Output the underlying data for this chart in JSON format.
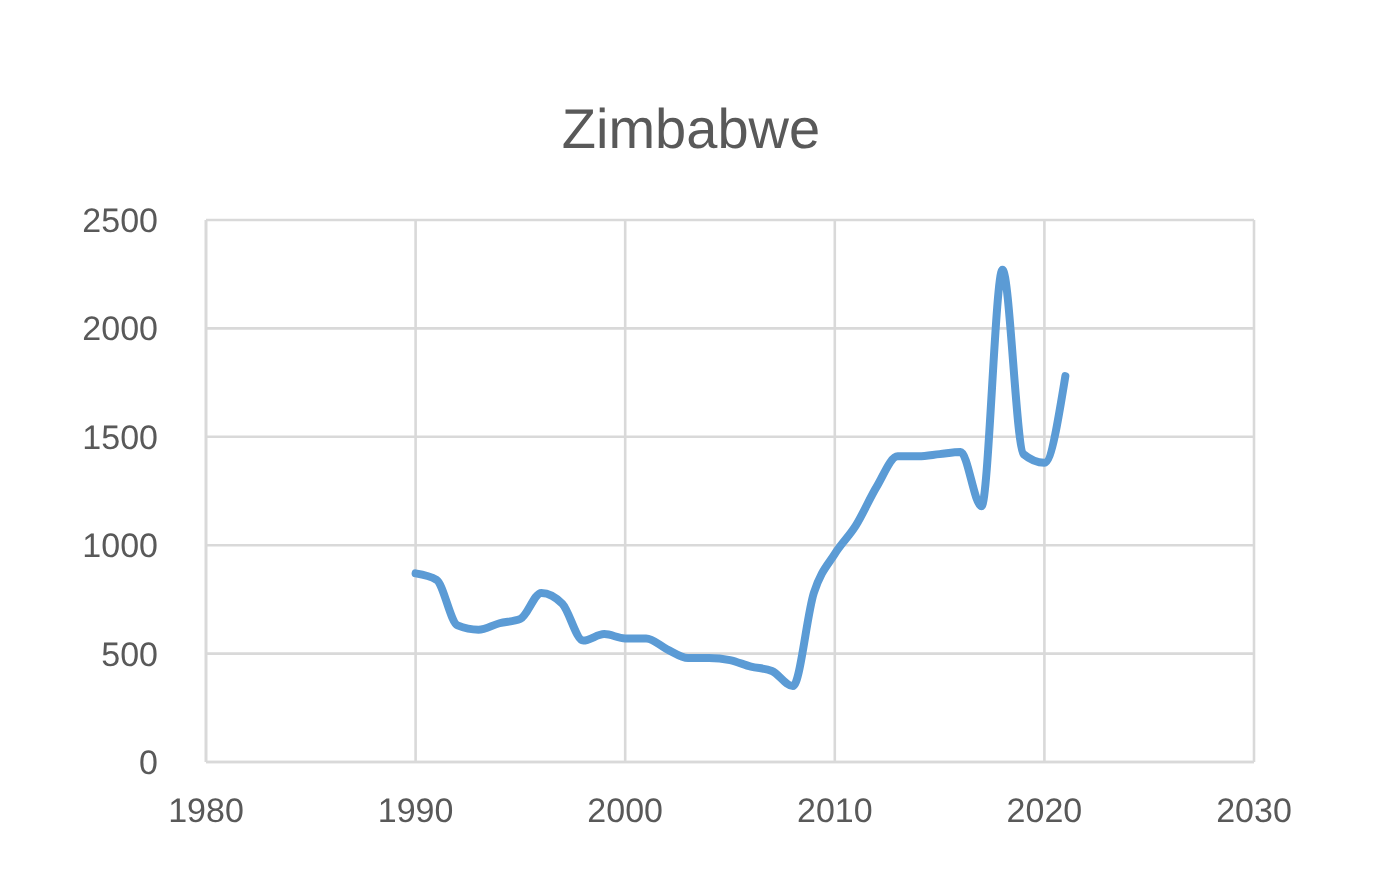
{
  "chart_data": {
    "type": "line",
    "title": "Zimbabwe",
    "x": [
      1990,
      1991,
      1992,
      1993,
      1994,
      1995,
      1996,
      1997,
      1998,
      1999,
      2000,
      2001,
      2002,
      2003,
      2004,
      2005,
      2006,
      2007,
      2008,
      2009,
      2010,
      2011,
      2012,
      2013,
      2014,
      2015,
      2016,
      2017,
      2018,
      2019,
      2020,
      2021
    ],
    "series": [
      {
        "color": "#5b9bd5",
        "values": [
          870,
          840,
          630,
          610,
          640,
          660,
          780,
          730,
          560,
          590,
          570,
          570,
          520,
          480,
          480,
          470,
          440,
          420,
          350,
          780,
          960,
          1090,
          1270,
          1410,
          1410,
          1420,
          1430,
          1180,
          2270,
          1420,
          1380,
          1780
        ]
      }
    ],
    "xlim": [
      1980,
      2030
    ],
    "xticks": [
      1980,
      1990,
      2000,
      2010,
      2020,
      2030
    ],
    "ylim": [
      0,
      2500
    ],
    "yticks": [
      0,
      500,
      1000,
      1500,
      2000,
      2500
    ],
    "grid": true,
    "line_style": "solid"
  }
}
